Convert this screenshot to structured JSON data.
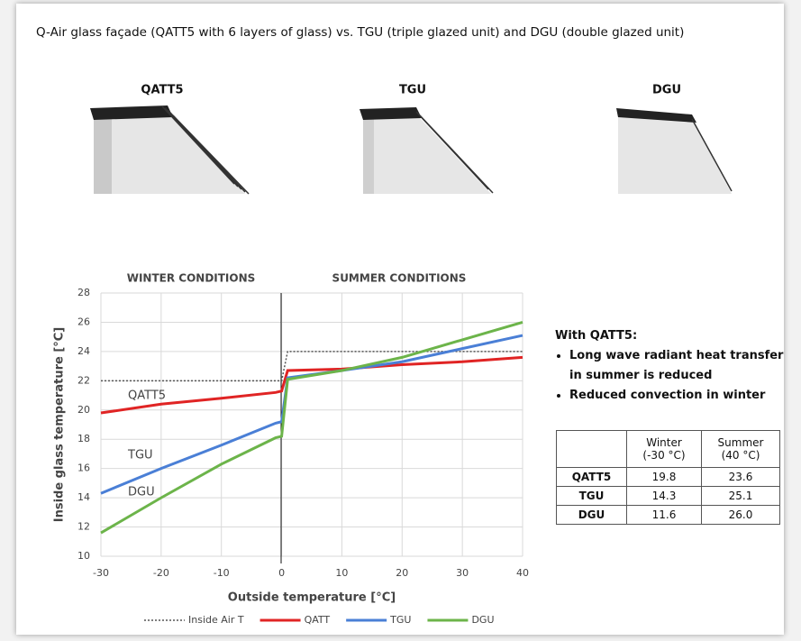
{
  "title": "Q-Air glass façade (QATT5 with 6 layers of glass) vs. TGU (triple glazed unit) and DGU (double glazed unit)",
  "illustrations": [
    "QATT5",
    "TGU",
    "DGU"
  ],
  "chart_data": {
    "type": "line",
    "x": [
      -30,
      -20,
      -10,
      -1,
      0,
      1,
      10,
      20,
      30,
      40
    ],
    "series": [
      {
        "name": "Inside Air T",
        "color": "#555555",
        "style": "dotted",
        "values": [
          22,
          22,
          22,
          22,
          22,
          24,
          24,
          24,
          24,
          24
        ]
      },
      {
        "name": "QATT",
        "color": "#e02424",
        "style": "solid",
        "values": [
          19.8,
          20.4,
          20.8,
          21.2,
          21.3,
          22.7,
          22.8,
          23.1,
          23.3,
          23.6
        ]
      },
      {
        "name": "TGU",
        "color": "#4a7fd6",
        "style": "solid",
        "values": [
          14.3,
          16.0,
          17.6,
          19.1,
          19.2,
          22.2,
          22.7,
          23.3,
          24.2,
          25.1
        ]
      },
      {
        "name": "DGU",
        "color": "#6cb44a",
        "style": "solid",
        "values": [
          11.6,
          14.0,
          16.3,
          18.1,
          18.2,
          22.1,
          22.7,
          23.6,
          24.8,
          26.0
        ]
      }
    ],
    "xlim": [
      -30,
      40
    ],
    "xticks": [
      -30,
      -20,
      -10,
      0,
      10,
      20,
      30,
      40
    ],
    "ylim": [
      10,
      28
    ],
    "yticks": [
      10,
      12,
      14,
      16,
      18,
      20,
      22,
      24,
      26,
      28
    ],
    "grid": true,
    "xlabel": "Outside temperature [°C]",
    "ylabel": "Inside glass temperature [°C]",
    "annotations": [
      "WINTER CONDITIONS",
      "SUMMER CONDITIONS",
      "QATT5",
      "TGU",
      "DGU"
    ],
    "legend": "bottom"
  },
  "notes": {
    "heading": "With QATT5:",
    "bullets": [
      "Long wave radiant heat transfer in summer is reduced",
      "Reduced convection in winter"
    ]
  },
  "table": {
    "header": [
      [
        "Winter",
        "(-30 °C)"
      ],
      [
        "Summer",
        "(40 °C)"
      ]
    ],
    "rows": [
      [
        "QATT5",
        "19.8",
        "23.6"
      ],
      [
        "TGU",
        "14.3",
        "25.1"
      ],
      [
        "DGU",
        "11.6",
        "26.0"
      ]
    ]
  }
}
